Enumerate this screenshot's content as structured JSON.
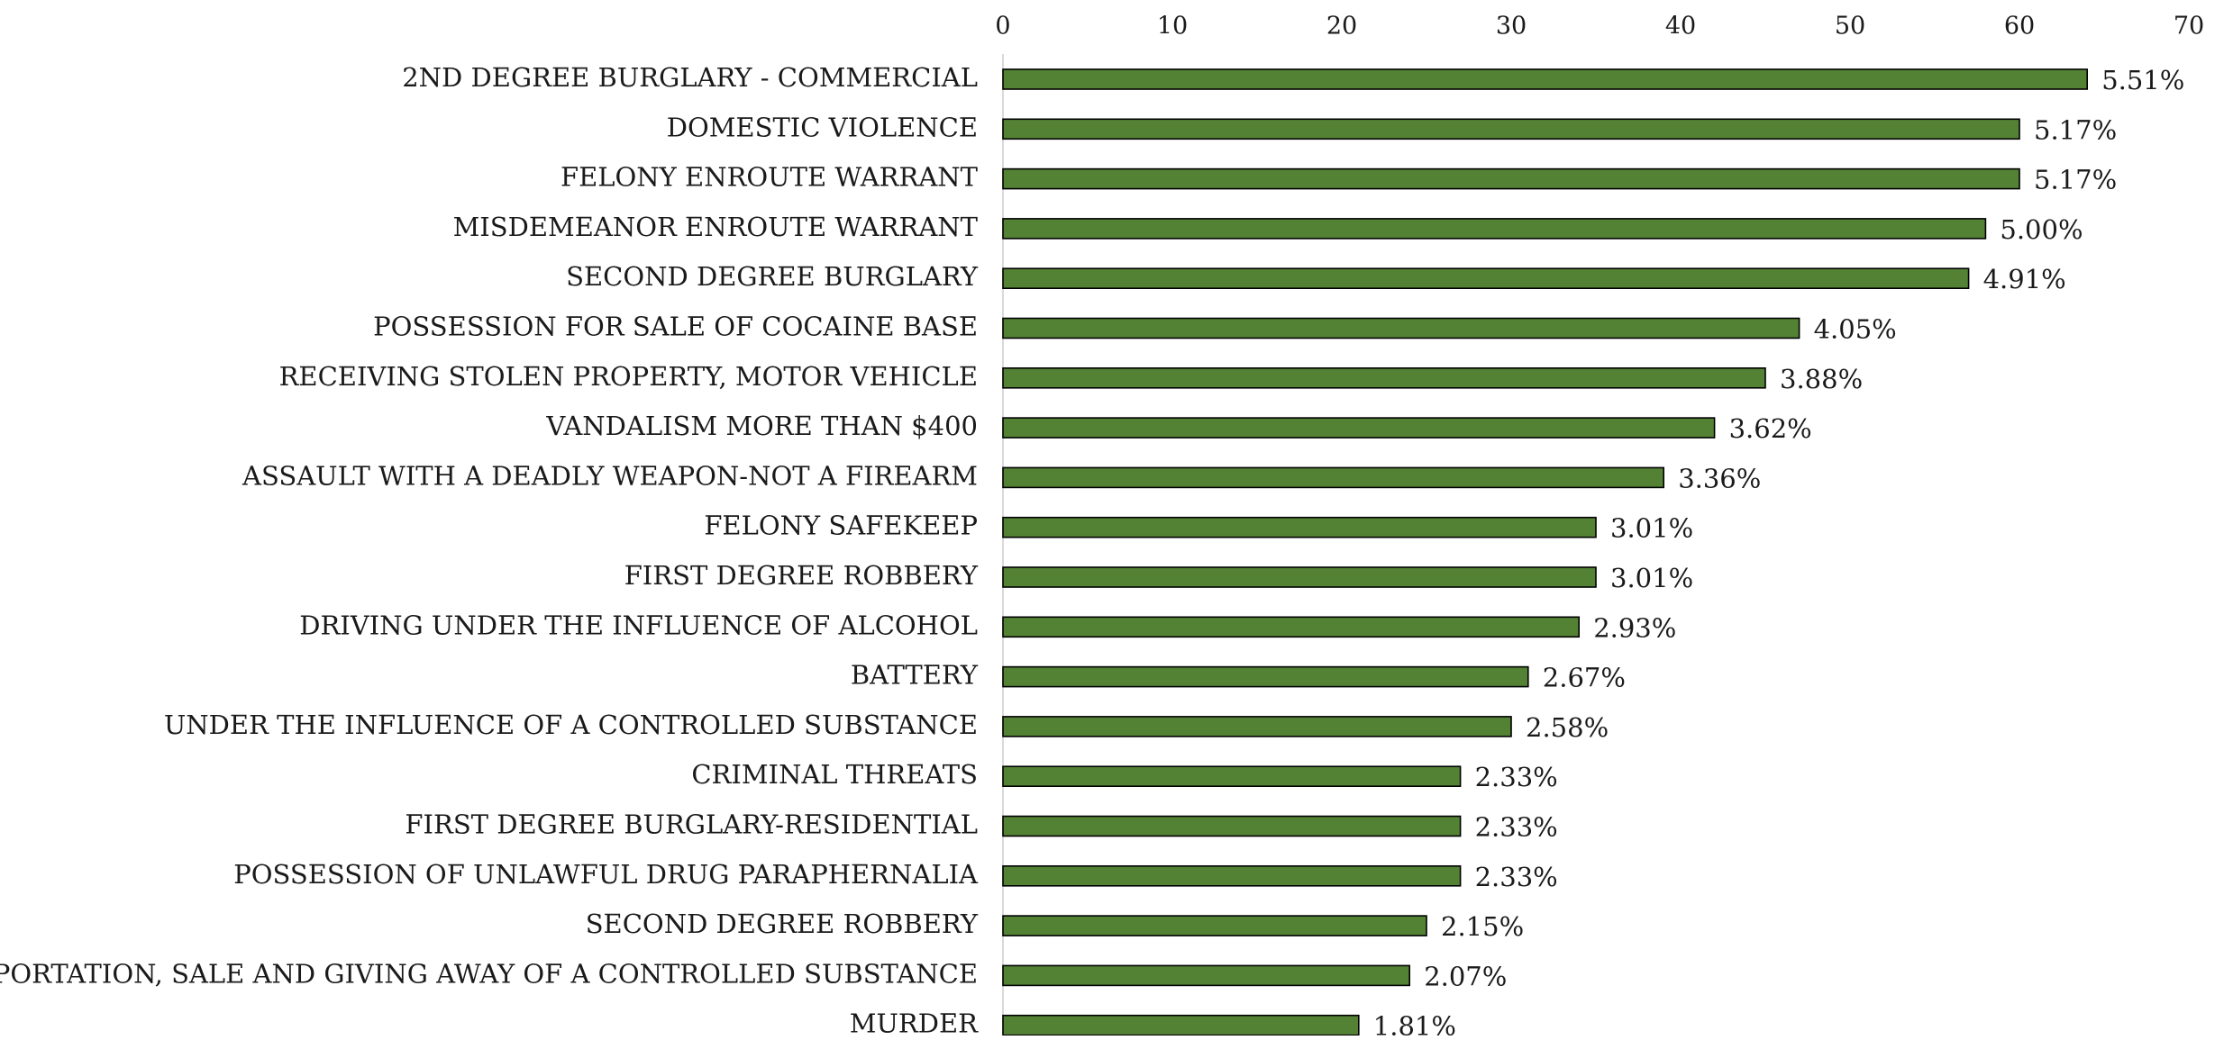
{
  "chart_data": {
    "type": "bar",
    "orientation": "horizontal",
    "categories": [
      "2ND DEGREE BURGLARY - COMMERCIAL",
      "DOMESTIC VIOLENCE",
      "FELONY ENROUTE WARRANT",
      "MISDEMEANOR ENROUTE WARRANT",
      "SECOND DEGREE BURGLARY",
      "POSSESSION FOR SALE OF COCAINE BASE",
      "RECEIVING STOLEN PROPERTY, MOTOR VEHICLE",
      "VANDALISM MORE THAN $400",
      "ASSAULT WITH A DEADLY WEAPON-NOT A FIREARM",
      "FELONY SAFEKEEP",
      "FIRST DEGREE ROBBERY",
      "DRIVING UNDER THE INFLUENCE OF ALCOHOL",
      "BATTERY",
      "UNDER THE INFLUENCE OF A CONTROLLED SUBSTANCE",
      "CRIMINAL THREATS",
      "FIRST DEGREE BURGLARY-RESIDENTIAL",
      "POSSESSION OF UNLAWFUL DRUG PARAPHERNALIA",
      "SECOND DEGREE ROBBERY",
      "TRANSPORTATION, SALE AND GIVING AWAY OF A CONTROLLED SUBSTANCE",
      "MURDER"
    ],
    "values": [
      64,
      60,
      60,
      58,
      57,
      47,
      45,
      42,
      39,
      35,
      35,
      34,
      31,
      30,
      27,
      27,
      27,
      25,
      24,
      21
    ],
    "data_labels": [
      "5.51%",
      "5.17%",
      "5.17%",
      "5.00%",
      "4.91%",
      "4.05%",
      "3.88%",
      "3.62%",
      "3.36%",
      "3.01%",
      "3.01%",
      "2.93%",
      "2.67%",
      "2.58%",
      "2.33%",
      "2.33%",
      "2.33%",
      "2.15%",
      "2.07%",
      "1.81%"
    ],
    "xlim": [
      0,
      70
    ],
    "xticks": [
      "0",
      "10",
      "20",
      "30",
      "40",
      "50",
      "60",
      "70"
    ],
    "x_axis_position": "top",
    "grid": false,
    "legend": "none",
    "bar_color": "#548235",
    "bar_edge_color": "#000000"
  }
}
